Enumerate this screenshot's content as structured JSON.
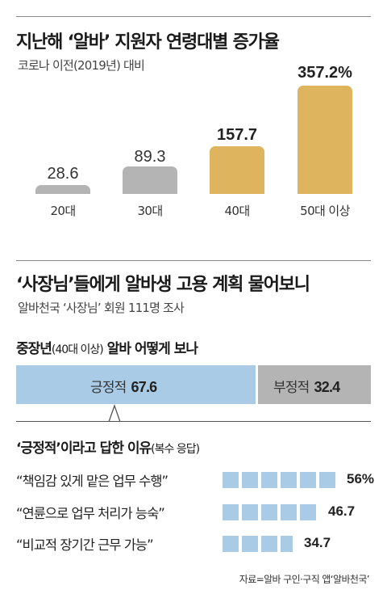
{
  "section1": {
    "title": "지난해 ‘알바’ 지원자 연령대별 증가율",
    "subtitle": "코로나 이전(2019년) 대비"
  },
  "section2": {
    "title": "‘사장님’들에게 알바생 고용 계획 물어보니",
    "subtitle": "알바천국 ‘사장님’ 회원 111명 조사",
    "split_heading_main": "중장년",
    "split_heading_paren": "(40대 이상)",
    "split_heading_rest": " 알바 어떻게 보나",
    "reasons_heading_main": "‘긍정적’이라고 답한 이유",
    "reasons_heading_paren": "(복수 응답)"
  },
  "source": "자료=알바 구인·구직 앱‘알바천국’",
  "colors": {
    "gray": "#b4b4b4",
    "gold": "#dfb45e",
    "blue": "#a9cbe6",
    "rule": "#8a8a8a"
  },
  "chart_data": [
    {
      "type": "bar",
      "categories": [
        "20대",
        "30대",
        "40대",
        "50대 이상"
      ],
      "values": [
        28.6,
        89.3,
        157.7,
        357.2
      ],
      "value_labels": [
        "28.6",
        "89.3",
        "157.7",
        "357.2%"
      ],
      "title": "지난해 ‘알바’ 지원자 연령대별 증가율",
      "subtitle": "코로나 이전(2019년) 대비",
      "unit": "%",
      "grid": false,
      "colors": [
        "#b4b4b4",
        "#b4b4b4",
        "#dfb45e",
        "#dfb45e"
      ]
    },
    {
      "type": "bar",
      "stacked": true,
      "orientation": "horizontal",
      "categories": [
        "긍정적",
        "부정적"
      ],
      "values": [
        67.6,
        32.4
      ],
      "value_labels": [
        "67.6",
        "32.4"
      ],
      "title": "중장년(40대 이상) 알바 어떻게 보나",
      "colors": [
        "#a9cbe6",
        "#b4b4b4"
      ]
    },
    {
      "type": "bar",
      "orientation": "horizontal",
      "categories": [
        "“책임감 있게 맡은 업무 수행”",
        "“연륜으로 업무 처리가 능숙”",
        "“비교적 장기간 근무 가능”"
      ],
      "values": [
        56,
        46.7,
        34.7
      ],
      "value_labels": [
        "56%",
        "46.7",
        "34.7"
      ],
      "title": "‘긍정적’이라고 답한 이유(복수 응답)",
      "unit": "%",
      "style": "segmented",
      "colors": [
        "#a9cbe6"
      ]
    }
  ]
}
